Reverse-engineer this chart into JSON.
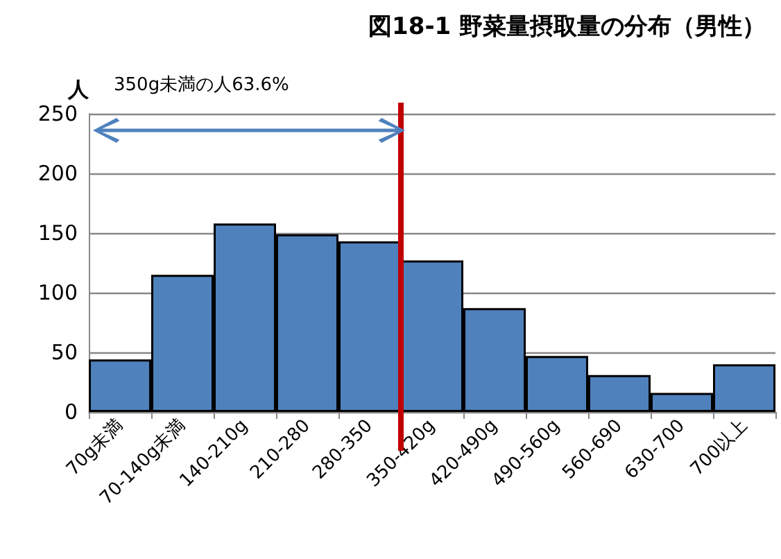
{
  "chart_data": {
    "type": "bar",
    "title": "図18-1 野菜量摂取量の分布（男性）",
    "ylabel": "人",
    "annotations": [
      "350g未満の人63.6%"
    ],
    "categories": [
      "70g未満",
      "70-140g未満",
      "140-210g",
      "210-280",
      "280-350",
      "350-420g",
      "420-490g",
      "490-560g",
      "560-690",
      "630-700",
      "700以上"
    ],
    "values": [
      44,
      115,
      158,
      149,
      143,
      127,
      87,
      47,
      31,
      16,
      40
    ],
    "color": "#4f81bd",
    "ylim": [
      0,
      250
    ],
    "yticks": [
      0,
      50,
      100,
      150,
      200,
      250
    ],
    "grid": "y",
    "ref_lines": [
      {
        "axis": "x",
        "value": "350-420g",
        "color": "#c00000"
      }
    ]
  }
}
